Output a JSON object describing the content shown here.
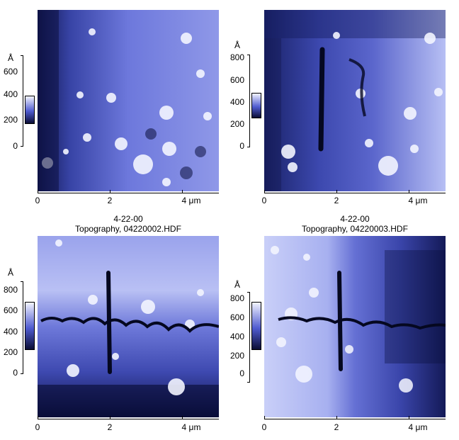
{
  "colors": {
    "dark": "#0a0d35",
    "mid": "#4f5bd0",
    "light": "#f2f4ff"
  },
  "z_unit": "Å",
  "x_unit": "μm",
  "panels": [
    {
      "title": {
        "date": "",
        "name": ""
      },
      "z_ticks": [
        "600",
        "400",
        "200",
        "0"
      ],
      "x_ticks": [
        "0",
        "2",
        "4 μm"
      ]
    },
    {
      "title": {
        "date": "",
        "name": ""
      },
      "z_ticks": [
        "800",
        "600",
        "400",
        "200",
        "0"
      ],
      "x_ticks": [
        "0",
        "2",
        "4 μm"
      ]
    },
    {
      "title": {
        "date": "4-22-00",
        "name": "Topography, 04220002.HDF"
      },
      "z_ticks": [
        "800",
        "600",
        "400",
        "200",
        "0"
      ],
      "x_ticks": [
        "0",
        "2",
        "4 μm"
      ]
    },
    {
      "title": {
        "date": "4-22-00",
        "name": "Topography, 04220003.HDF"
      },
      "z_ticks": [
        "800",
        "600",
        "400",
        "200",
        "0"
      ],
      "x_ticks": [
        "0",
        "2",
        "4 μm"
      ]
    }
  ]
}
